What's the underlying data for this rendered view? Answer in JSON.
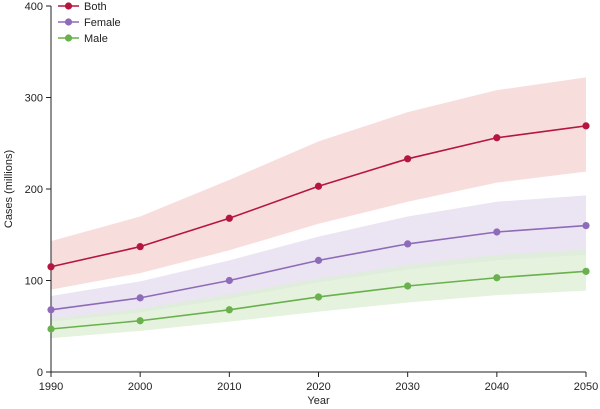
{
  "chart_data": {
    "type": "line",
    "xlabel": "Year",
    "ylabel": "Cases (millions)",
    "xlim": [
      1990,
      2050
    ],
    "ylim": [
      0,
      400
    ],
    "xticks": [
      "1990",
      "2000",
      "2010",
      "2020",
      "2030",
      "2040",
      "2050"
    ],
    "yticks": [
      "0",
      "100",
      "200",
      "300",
      "400"
    ],
    "x": [
      1990,
      2000,
      2010,
      2020,
      2030,
      2040,
      2050
    ],
    "grid": false,
    "legend_position": "top-left",
    "series": [
      {
        "name": "Both",
        "color": "#b5163f",
        "band_color": "#f5d6d4",
        "values": [
          115,
          137,
          168,
          203,
          233,
          256,
          269
        ],
        "lower": [
          90,
          108,
          133,
          162,
          186,
          207,
          219
        ],
        "upper": [
          143,
          170,
          210,
          252,
          284,
          308,
          322
        ]
      },
      {
        "name": "Female",
        "color": "#8e6bb8",
        "band_color": "#e6dff0",
        "values": [
          68,
          81,
          100,
          122,
          140,
          153,
          160
        ],
        "lower": [
          55,
          65,
          80,
          98,
          112,
          122,
          128
        ],
        "upper": [
          83,
          99,
          122,
          148,
          170,
          186,
          193
        ]
      },
      {
        "name": "Male",
        "color": "#6ab04c",
        "band_color": "#ddefd6",
        "values": [
          47,
          56,
          68,
          82,
          94,
          103,
          110
        ],
        "lower": [
          37,
          45,
          55,
          66,
          76,
          84,
          89
        ],
        "upper": [
          58,
          69,
          85,
          102,
          117,
          128,
          134
        ]
      }
    ]
  }
}
